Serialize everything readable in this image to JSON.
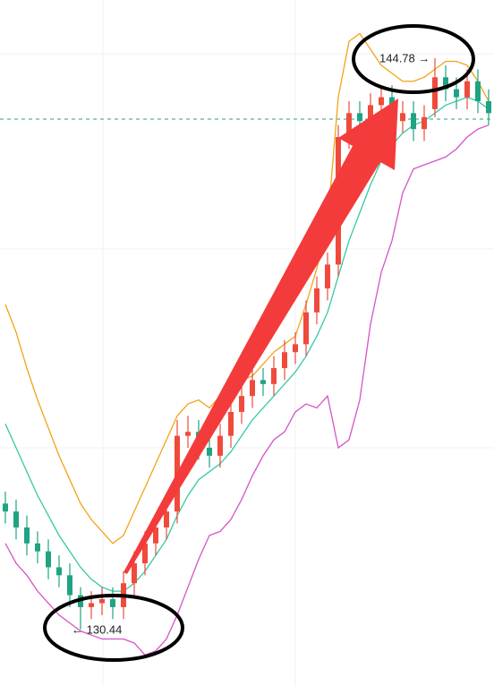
{
  "chart_data": {
    "type": "candlestick",
    "open": [
      133.6,
      133.4,
      133.0,
      132.6,
      132.4,
      132.0,
      131.8,
      131.3,
      131.0,
      131.1,
      131.2,
      131.0,
      131.6,
      132.1,
      132.6,
      133.0,
      133.4,
      135.3,
      135.4,
      135.0,
      134.8,
      135.3,
      135.9,
      136.3,
      136.7,
      136.6,
      137.0,
      137.4,
      137.6,
      138.4,
      139.0,
      139.6,
      142.8,
      143.4,
      143.2,
      143.6,
      143.8,
      143.2,
      143.4,
      143.0,
      143.5,
      144.3,
      144.0,
      143.8,
      144.2,
      143.7
    ],
    "high": [
      133.9,
      133.7,
      133.3,
      132.9,
      132.7,
      132.3,
      132.1,
      131.5,
      131.4,
      131.5,
      131.5,
      131.9,
      132.4,
      132.9,
      133.3,
      133.7,
      135.7,
      135.8,
      135.7,
      135.3,
      135.6,
      136.2,
      136.6,
      137.0,
      137.0,
      137.3,
      137.7,
      137.9,
      138.7,
      139.3,
      139.9,
      143.1,
      143.7,
      143.7,
      143.9,
      144.1,
      144.1,
      143.7,
      143.7,
      143.6,
      144.78,
      144.6,
      144.3,
      144.5,
      144.5,
      144.0
    ],
    "low": [
      133.1,
      132.7,
      132.3,
      132.1,
      131.7,
      131.5,
      131.0,
      130.44,
      130.7,
      130.8,
      130.7,
      130.7,
      131.3,
      131.8,
      132.3,
      132.7,
      133.1,
      135.0,
      134.7,
      134.5,
      134.5,
      135.0,
      135.6,
      136.0,
      136.3,
      136.3,
      136.7,
      137.1,
      137.3,
      138.1,
      138.7,
      139.3,
      142.5,
      142.9,
      142.9,
      143.3,
      142.9,
      142.9,
      142.7,
      142.7,
      143.3,
      143.7,
      143.5,
      143.5,
      143.4,
      143.1
    ],
    "close": [
      133.4,
      133.0,
      132.6,
      132.4,
      132.0,
      131.8,
      131.3,
      131.0,
      131.1,
      131.2,
      131.0,
      131.6,
      132.1,
      132.6,
      133.0,
      133.4,
      135.3,
      135.4,
      135.0,
      134.8,
      135.3,
      135.9,
      136.3,
      136.7,
      136.6,
      137.0,
      137.4,
      137.6,
      138.4,
      139.0,
      139.6,
      142.8,
      143.4,
      143.2,
      143.6,
      143.8,
      143.2,
      143.4,
      143.0,
      143.3,
      144.3,
      144.0,
      143.8,
      144.2,
      143.7,
      143.4
    ],
    "up_color": "#ef4a3c",
    "down_color": "#1fa383",
    "bands": [
      {
        "color": "#f3a318",
        "values": [
          138.6,
          137.9,
          137.0,
          136.2,
          135.5,
          134.8,
          134.2,
          133.6,
          133.2,
          132.9,
          132.6,
          132.8,
          133.4,
          134.0,
          134.6,
          135.2,
          135.8,
          136.1,
          136.2,
          136.0,
          136.3,
          136.5,
          136.7,
          136.8,
          137.1,
          137.4,
          137.6,
          137.8,
          138.6,
          139.5,
          140.6,
          143.8,
          145.2,
          145.4,
          145.0,
          144.6,
          144.4,
          144.2,
          144.2,
          144.3,
          144.5,
          144.7,
          144.7,
          144.6,
          144.2,
          143.7
        ]
      },
      {
        "color": "#35c9a4",
        "values": [
          135.6,
          135.0,
          134.4,
          133.8,
          133.3,
          132.8,
          132.4,
          132.0,
          131.7,
          131.5,
          131.4,
          131.4,
          131.6,
          131.9,
          132.3,
          132.7,
          133.3,
          133.8,
          134.2,
          134.4,
          134.6,
          134.9,
          135.3,
          135.7,
          136.0,
          136.3,
          136.6,
          136.9,
          137.3,
          137.8,
          138.4,
          139.3,
          140.2,
          140.9,
          141.6,
          142.2,
          142.6,
          142.9,
          143.1,
          143.2,
          143.4,
          143.6,
          143.7,
          143.8,
          143.7,
          143.5
        ]
      },
      {
        "color": "#d653c8",
        "values": [
          132.6,
          132.1,
          131.8,
          131.4,
          131.1,
          130.8,
          130.6,
          130.4,
          130.3,
          130.2,
          130.2,
          130.2,
          130.1,
          129.8,
          129.9,
          130.2,
          130.8,
          131.5,
          132.2,
          132.8,
          132.9,
          133.2,
          133.7,
          134.3,
          134.8,
          135.2,
          135.4,
          135.9,
          136.1,
          136.0,
          136.3,
          135.0,
          135.2,
          136.2,
          138.1,
          139.4,
          140.2,
          141.4,
          142.0,
          142.1,
          142.2,
          142.3,
          142.5,
          142.8,
          143.0,
          143.1
        ]
      }
    ],
    "price_line": 143.25,
    "price_line_color": "#1fa383",
    "ylim": [
      129.02,
      146.24
    ],
    "annotations": [
      "144.78 →",
      "← 130.44"
    ]
  }
}
